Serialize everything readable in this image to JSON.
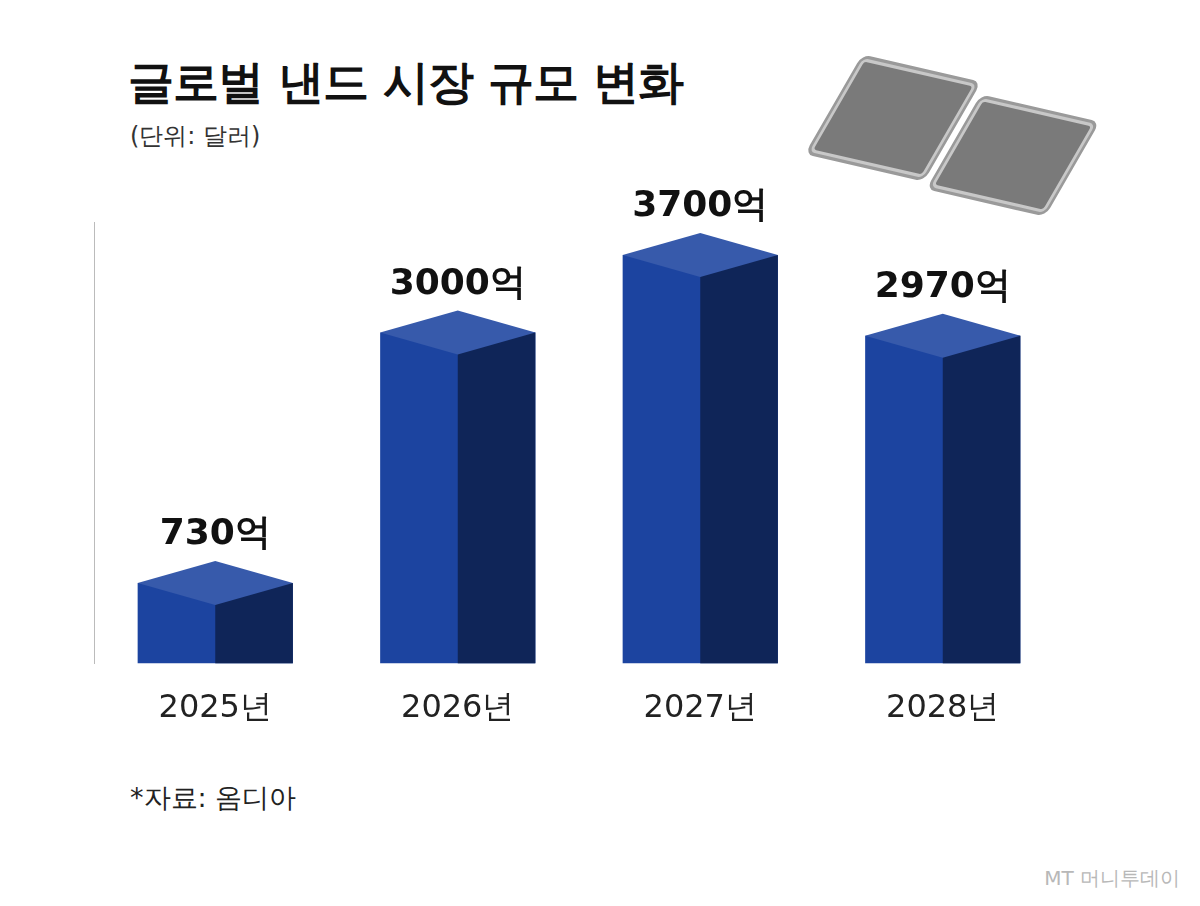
{
  "chart_data": {
    "type": "bar",
    "title": "글로벌 낸드 시장 규모 변화",
    "subtitle": "(단위: 달러)",
    "categories": [
      "2025년",
      "2026년",
      "2027년",
      "2028년"
    ],
    "values": [
      730,
      3000,
      3700,
      2970
    ],
    "value_labels": [
      "730억",
      "3000억",
      "3700억",
      "2970억"
    ],
    "color": "#1c44a0",
    "ylim": [
      0,
      4000
    ],
    "grid": false,
    "data_labels": true,
    "tick_labels": "x",
    "source": "*자료: 옴디아",
    "watermark": "MT 머니투데이"
  }
}
